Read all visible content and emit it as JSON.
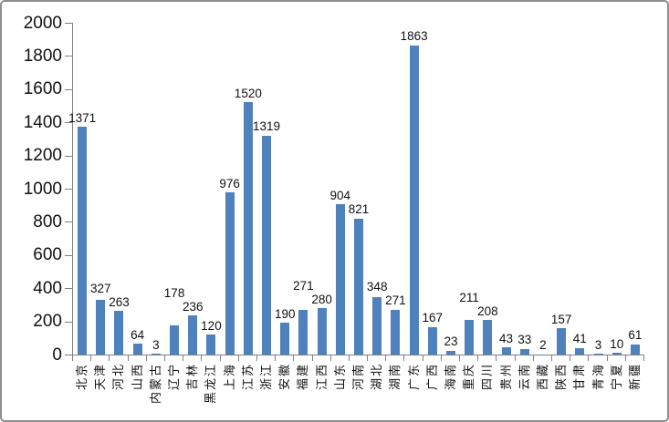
{
  "chart_data": {
    "type": "bar",
    "title": "",
    "categories": [
      "北京",
      "天津",
      "河北",
      "山西",
      "内蒙古",
      "辽宁",
      "吉林",
      "黑龙江",
      "上海",
      "江苏",
      "浙江",
      "安徽",
      "福建",
      "江西",
      "山东",
      "河南",
      "湖北",
      "湖南",
      "广东",
      "广西",
      "海南",
      "重庆",
      "四川",
      "贵州",
      "云南",
      "西藏",
      "陕西",
      "甘肃",
      "青海",
      "宁夏",
      "新疆"
    ],
    "values": [
      1371,
      327,
      263,
      64,
      3,
      178,
      236,
      120,
      976,
      1520,
      1319,
      190,
      271,
      280,
      904,
      821,
      348,
      271,
      1863,
      167,
      23,
      211,
      208,
      43,
      33,
      2,
      157,
      41,
      3,
      10,
      61
    ],
    "ylim": [
      0,
      2000
    ],
    "ytick_interval": 200,
    "ytick_labels": [
      "0",
      "200",
      "400",
      "600",
      "800",
      "1000",
      "1200",
      "1400",
      "1600",
      "1800",
      "2000"
    ],
    "data_labels_shown": true,
    "grid": false,
    "legend": false,
    "xlabel": "",
    "ylabel": "",
    "category_label_orientation": "rotated-90-bottom-to-top",
    "colors": {
      "bar": "#4F81BD",
      "axis": "#808080",
      "text": "#111111",
      "frame_border": "#8e8e8e",
      "background": "#ffffff"
    }
  }
}
